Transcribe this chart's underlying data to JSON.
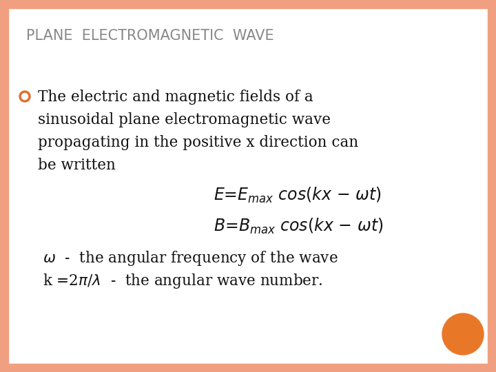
{
  "title": "PLANE  ELECTROMAGNETIC  WAVE",
  "title_color": "#888888",
  "title_fontsize": 15,
  "background_color": "#ffffff",
  "border_color": "#f0a080",
  "border_linewidth": 10,
  "bullet_color": "#e07030",
  "body_text_color": "#111111",
  "body_fontsize": 15.5,
  "eq_fontsize": 17,
  "line1": "The electric and magnetic fields of a",
  "line2": "sinusoidal plane electromagnetic wave",
  "line3": "propagating in the positive x direction can",
  "line4": "be written",
  "omega_line": "ω  -  the angular frequency of the wave",
  "k_line": "k =2π/λ  -  the angular wave number.",
  "orange_circle_color": "#e87828"
}
